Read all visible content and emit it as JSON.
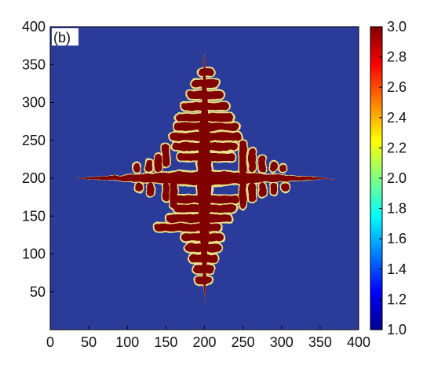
{
  "chart_data": {
    "type": "heatmap",
    "panel_label": "(b)",
    "title": "",
    "xlabel": "",
    "ylabel": "",
    "xlim": [
      0,
      400
    ],
    "ylim": [
      0,
      400
    ],
    "x_ticks": [
      0,
      50,
      100,
      150,
      200,
      250,
      300,
      350,
      400
    ],
    "y_ticks": [
      50,
      100,
      150,
      200,
      250,
      300,
      350,
      400
    ],
    "colorbar": {
      "range": [
        1.0,
        3.0
      ],
      "ticks": [
        "3.0",
        "2.8",
        "2.6",
        "2.4",
        "2.2",
        "2.0",
        "1.8",
        "1.6",
        "1.4",
        "1.2",
        "1.0"
      ],
      "colormap": "jet",
      "colors": [
        "#00008f",
        "#0000ff",
        "#0080ff",
        "#00ffff",
        "#80ff80",
        "#ffff00",
        "#ff8000",
        "#ff0000",
        "#800000"
      ]
    },
    "background_value": 1.0,
    "dendrite_value": 3.0,
    "dendrite": {
      "center": [
        200,
        200
      ],
      "trunk_tips": {
        "up": [
          200,
          365
        ],
        "down": [
          200,
          35
        ],
        "left": [
          32,
          200
        ],
        "right": [
          368,
          200
        ]
      },
      "secondary_arms": [
        {
          "y": 340,
          "x_min": 192,
          "x_max": 212
        },
        {
          "y": 325,
          "x_min": 183,
          "x_max": 220
        },
        {
          "y": 310,
          "x_min": 178,
          "x_max": 225
        },
        {
          "y": 295,
          "x_min": 170,
          "x_max": 232
        },
        {
          "y": 280,
          "x_min": 163,
          "x_max": 238
        },
        {
          "y": 268,
          "x_min": 160,
          "x_max": 245
        },
        {
          "y": 255,
          "x_min": 155,
          "x_max": 248
        },
        {
          "y": 242,
          "x_min": 158,
          "x_max": 243
        },
        {
          "y": 228,
          "x_min": 165,
          "x_max": 240
        },
        {
          "y": 172,
          "x_min": 155,
          "x_max": 245
        },
        {
          "y": 160,
          "x_min": 160,
          "x_max": 242
        },
        {
          "y": 147,
          "x_min": 150,
          "x_max": 235
        },
        {
          "y": 135,
          "x_min": 135,
          "x_max": 222
        },
        {
          "y": 122,
          "x_min": 170,
          "x_max": 225
        },
        {
          "y": 108,
          "x_min": 175,
          "x_max": 222
        },
        {
          "y": 94,
          "x_min": 180,
          "x_max": 218
        },
        {
          "y": 80,
          "x_min": 185,
          "x_max": 213
        },
        {
          "y": 65,
          "x_min": 188,
          "x_max": 210
        }
      ],
      "side_arms": [
        {
          "x": 150,
          "y_min": 215,
          "y_max": 245
        },
        {
          "x": 140,
          "y_min": 208,
          "y_max": 232
        },
        {
          "x": 128,
          "y_min": 208,
          "y_max": 225
        },
        {
          "x": 112,
          "y_min": 208,
          "y_max": 220
        },
        {
          "x": 160,
          "y_min": 160,
          "y_max": 195
        },
        {
          "x": 150,
          "y_min": 170,
          "y_max": 194
        },
        {
          "x": 130,
          "y_min": 176,
          "y_max": 194
        },
        {
          "x": 115,
          "y_min": 182,
          "y_max": 194
        },
        {
          "x": 250,
          "y_min": 205,
          "y_max": 250
        },
        {
          "x": 262,
          "y_min": 208,
          "y_max": 240
        },
        {
          "x": 275,
          "y_min": 208,
          "y_max": 230
        },
        {
          "x": 290,
          "y_min": 208,
          "y_max": 222
        },
        {
          "x": 302,
          "y_min": 208,
          "y_max": 218
        },
        {
          "x": 250,
          "y_min": 160,
          "y_max": 195
        },
        {
          "x": 262,
          "y_min": 168,
          "y_max": 194
        },
        {
          "x": 275,
          "y_min": 175,
          "y_max": 194
        },
        {
          "x": 290,
          "y_min": 178,
          "y_max": 194
        },
        {
          "x": 305,
          "y_min": 182,
          "y_max": 194
        }
      ]
    }
  }
}
